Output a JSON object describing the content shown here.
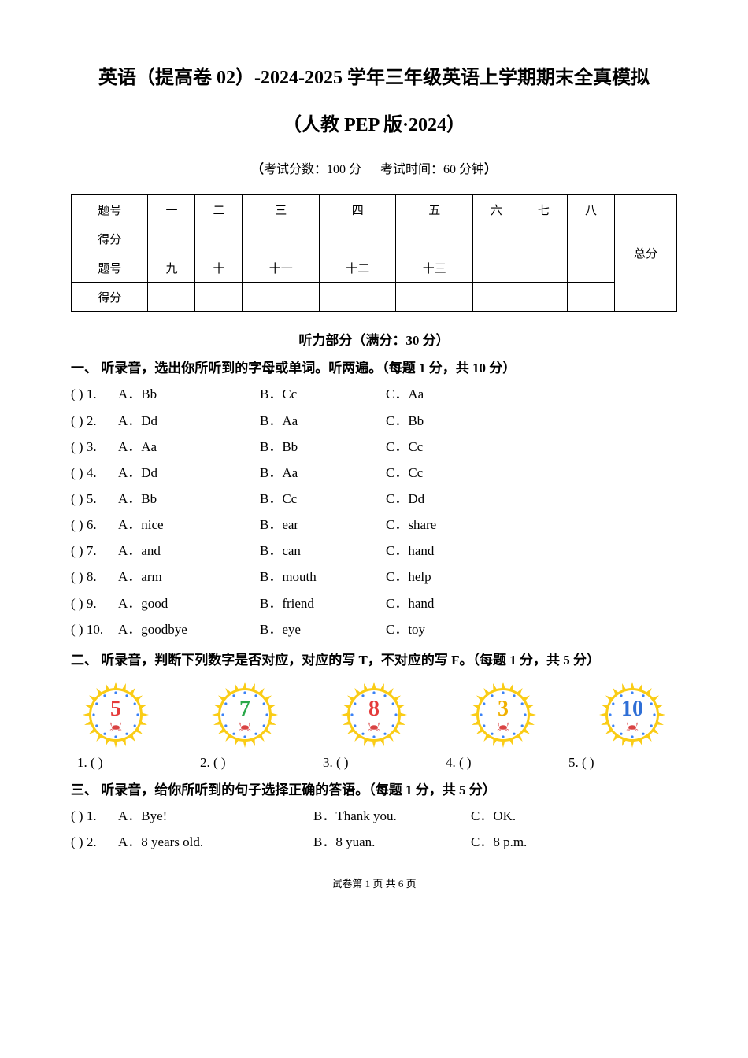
{
  "title_main": "英语（提高卷 02）-2024-2025 学年三年级英语上学期期末全真模拟",
  "title_sub": "（人教 PEP 版·2024）",
  "exam_info_left": "考试分数：100 分",
  "exam_info_right": "考试时间：60 分钟",
  "score_table": {
    "row1_header": "题号",
    "row1_cells": [
      "一",
      "二",
      "三",
      "四",
      "五",
      "六",
      "七",
      "八"
    ],
    "total_label": "总分",
    "row2_header": "得分",
    "row3_header": "题号",
    "row3_cells": [
      "九",
      "十",
      "十一",
      "十二",
      "十三",
      "",
      "",
      ""
    ],
    "row4_header": "得分",
    "header_col_width": 62,
    "num_col_width": 74,
    "total_col_width": 78,
    "border_color": "#000000"
  },
  "listening_title": "听力部分（满分：30 分）",
  "section1": {
    "heading": "一、 听录音，选出你所听到的字母或单词。听两遍。（每题 1 分，共 10 分）",
    "questions": [
      {
        "n": "1",
        "a": "A．Bb",
        "b": "B．Cc",
        "c": "C．Aa"
      },
      {
        "n": "2",
        "a": "A．Dd",
        "b": "B．Aa",
        "c": "C．Bb"
      },
      {
        "n": "3",
        "a": "A．Aa",
        "b": "B．Bb",
        "c": "C．Cc"
      },
      {
        "n": "4",
        "a": "A．Dd",
        "b": "B．Aa",
        "c": "C．Cc"
      },
      {
        "n": "5",
        "a": "A．Bb",
        "b": "B．Cc",
        "c": "C．Dd"
      },
      {
        "n": "6",
        "a": "A．nice",
        "b": "B．ear",
        "c": "C．share"
      },
      {
        "n": "7",
        "a": "A．and",
        "b": "B．can",
        "c": "C．hand"
      },
      {
        "n": "8",
        "a": "A．arm",
        "b": "B．mouth",
        "c": "C．help"
      },
      {
        "n": "9",
        "a": "A．good",
        "b": "B．friend",
        "c": "C．hand"
      },
      {
        "n": "10",
        "a": "A．goodbye",
        "b": "B．eye",
        "c": "C．toy"
      }
    ]
  },
  "section2": {
    "heading": "二、 听录音，判断下列数字是否对应，对应的写 T，不对应的写 F。（每题 1 分，共 5 分）",
    "badges": [
      {
        "digit": "5",
        "color": "#e53a3a"
      },
      {
        "digit": "7",
        "color": "#2aa84a"
      },
      {
        "digit": "8",
        "color": "#e53a3a"
      },
      {
        "digit": "3",
        "color": "#f0b000"
      },
      {
        "digit": "10",
        "color": "#2f6fd6"
      }
    ],
    "badge_style": {
      "ring_outer": "#facc15",
      "ring_inner": "#ffffff",
      "ray_color": "#facc15",
      "dot_color": "#3b82f6",
      "crab_color": "#d94343",
      "digit_font_family": "Georgia, 'Times New Roman', serif",
      "digit_font_weight": "bold",
      "digit_fontsize": 28
    },
    "picks": [
      "1. (      )",
      "2. (      )",
      "3. (      )",
      "4. (      )",
      "5. (      )"
    ]
  },
  "section3": {
    "heading": "三、 听录音，给你所听到的句子选择正确的答语。（每题 1 分，共 5 分）",
    "questions": [
      {
        "n": "1",
        "a": "A．Bye!",
        "b": "B．Thank you.",
        "c": "C．OK."
      },
      {
        "n": "2",
        "a": "A．8 years old.",
        "b": "B．8 yuan.",
        "c": "C．8 p.m."
      }
    ]
  },
  "footer": "试卷第 1 页 共 6 页"
}
